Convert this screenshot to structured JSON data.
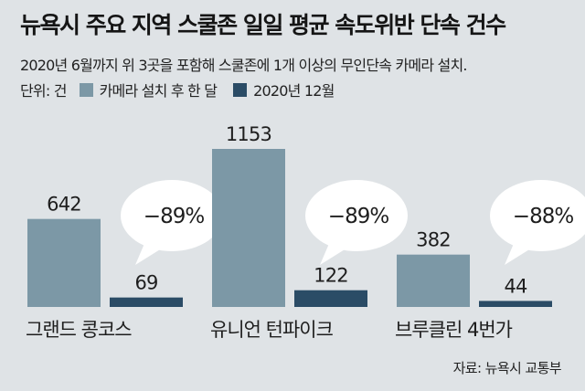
{
  "title": "뉴욕시 주요 지역 스쿨존 일일 평균 속도위반 단속 건수",
  "subtitle": "2020년 6월까지 위 3곳을 포함해 스쿨존에 1개 이상의 무인단속 카메라 설치.",
  "unit_label": "단위: 건",
  "source": "자료: 뉴욕시 교통부",
  "colors": {
    "background": "#dfe3e6",
    "after_install": "#7c98a6",
    "dec_2020": "#2b4c66",
    "bubble": "#ffffff"
  },
  "chart_data": {
    "type": "bar",
    "categories": [
      "그랜드 콩코스",
      "유니언 턴파이크",
      "브루클린 4번가"
    ],
    "series": [
      {
        "name": "카메라 설치 후 한 달",
        "values": [
          642,
          1153,
          382
        ]
      },
      {
        "name": "2020년 12월",
        "values": [
          69,
          122,
          44
        ]
      }
    ],
    "change_labels": [
      "−89%",
      "−89%",
      "−88%"
    ],
    "ylim": [
      0,
      1153
    ],
    "grid": false,
    "legend": "top-left"
  }
}
